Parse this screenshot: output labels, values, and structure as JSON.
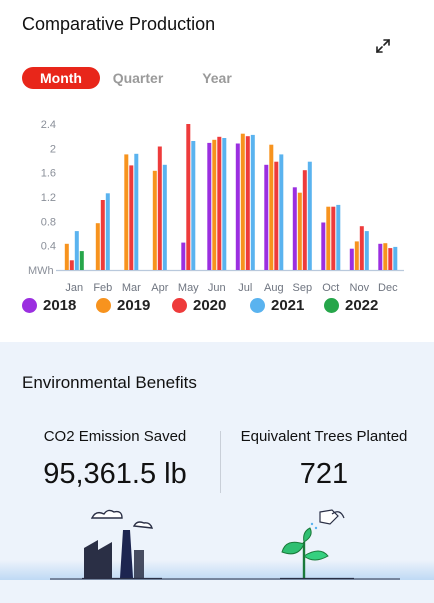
{
  "header": {
    "title": "Comparative Production",
    "expand_icon": "expand-arrows-icon"
  },
  "tabs": [
    {
      "label": "Month",
      "active": true
    },
    {
      "label": "Quarter",
      "active": false
    },
    {
      "label": "Year",
      "active": false
    }
  ],
  "chart_data": {
    "type": "bar",
    "categories": [
      "Jan",
      "Feb",
      "Mar",
      "Apr",
      "May",
      "Jun",
      "Jul",
      "Aug",
      "Sep",
      "Oct",
      "Nov",
      "Dec"
    ],
    "ylabel": "MWh",
    "ylim": [
      0,
      2.4
    ],
    "yticks": [
      0.4,
      0.8,
      1.2,
      1.6,
      2,
      2.4
    ],
    "series": [
      {
        "name": "2018",
        "color": "#9b2fe0",
        "values": [
          null,
          null,
          null,
          null,
          0.45,
          2.09,
          2.08,
          1.73,
          1.36,
          0.78,
          0.35,
          0.43
        ]
      },
      {
        "name": "2019",
        "color": "#f7931e",
        "values": [
          0.43,
          0.77,
          1.9,
          1.63,
          null,
          2.14,
          2.24,
          2.06,
          1.27,
          1.04,
          0.47,
          0.44
        ]
      },
      {
        "name": "2020",
        "color": "#ee3b3b",
        "values": [
          0.16,
          1.15,
          1.72,
          2.03,
          2.4,
          2.19,
          2.2,
          1.78,
          1.64,
          1.04,
          0.72,
          0.36
        ]
      },
      {
        "name": "2021",
        "color": "#5ab3ef",
        "values": [
          0.64,
          1.26,
          1.91,
          1.73,
          2.12,
          2.17,
          2.22,
          1.9,
          1.78,
          1.07,
          0.64,
          0.38
        ]
      },
      {
        "name": "2022",
        "color": "#26a64a",
        "values": [
          0.31,
          null,
          null,
          null,
          null,
          null,
          null,
          null,
          null,
          null,
          null,
          null
        ]
      }
    ]
  },
  "environment": {
    "title": "Environmental Benefits",
    "co2_label": "CO2 Emission Saved",
    "co2_value": "95,361.5 lb",
    "trees_label": "Equivalent Trees Planted",
    "trees_value": "721",
    "factory_icon": "factory-icon",
    "plant_icon": "plant-watering-icon"
  }
}
